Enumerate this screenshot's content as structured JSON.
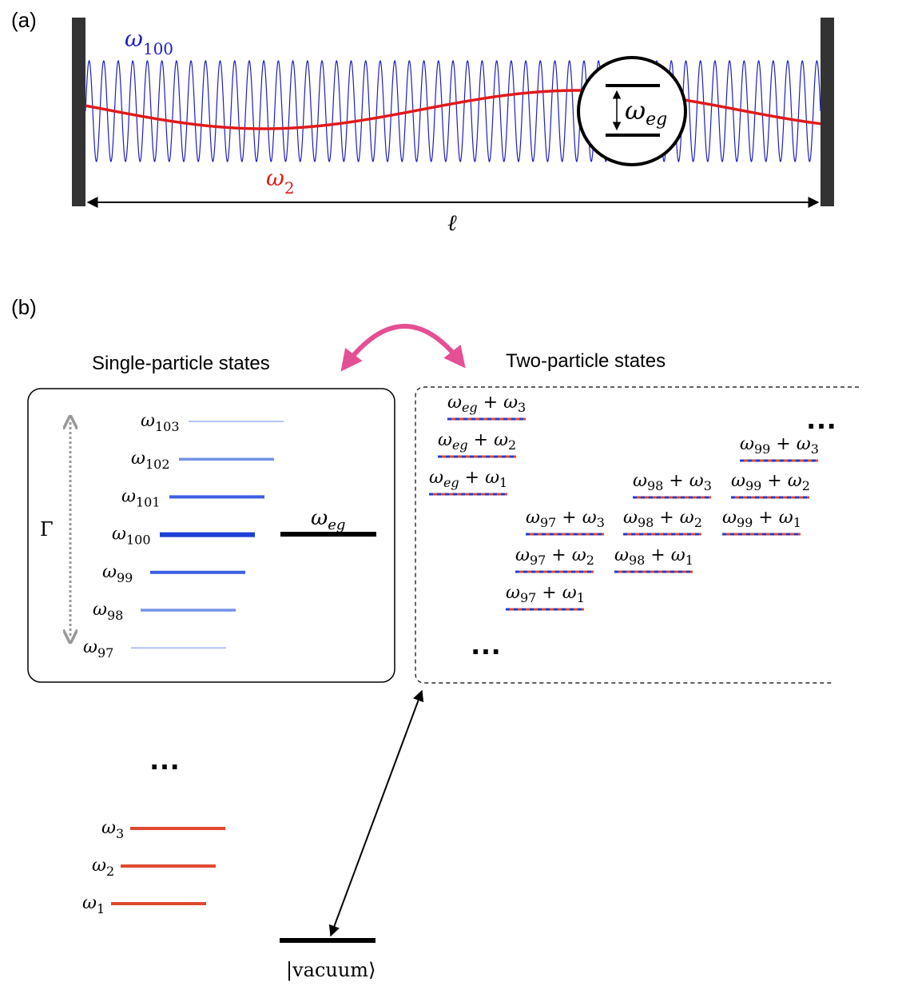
{
  "panel_a": {
    "label": "(a)",
    "high_mode": {
      "symbol": "ω",
      "subscript": "100",
      "color": "#1f1fbf"
    },
    "low_mode": {
      "symbol": "ω",
      "subscript": "2",
      "color": "#e01b1b"
    },
    "atom": {
      "symbol": "ω",
      "subscript": "eg"
    },
    "length_label": "ℓ",
    "wall_color": "#333333"
  },
  "panel_b": {
    "label": "(b)",
    "single_title": "Single-particle states",
    "two_title": "Two-particle states",
    "gamma_label": "Γ",
    "arrow_color": "#e54f94",
    "single_levels": [
      {
        "sub": "103",
        "color": "#b3c2f5"
      },
      {
        "sub": "102",
        "color": "#7393ea"
      },
      {
        "sub": "101",
        "color": "#3a5ee3"
      },
      {
        "sub": "100",
        "color": "#1c3fd6"
      },
      {
        "sub": "99",
        "color": "#3a5ee3"
      },
      {
        "sub": "98",
        "color": "#7393ea"
      },
      {
        "sub": "97",
        "color": "#b3c2f5"
      }
    ],
    "atom_level": {
      "symbol": "ω",
      "subscript": "eg"
    },
    "low_levels": [
      {
        "sub": "3"
      },
      {
        "sub": "2"
      },
      {
        "sub": "1"
      }
    ],
    "low_level_color": "#e0492f",
    "two_particle_states": [
      {
        "a": "eg",
        "b": "3"
      },
      {
        "a": "eg",
        "b": "2"
      },
      {
        "a": "eg",
        "b": "1"
      },
      {
        "a": "99",
        "b": "3"
      },
      {
        "a": "98",
        "b": "3"
      },
      {
        "a": "99",
        "b": "2"
      },
      {
        "a": "97",
        "b": "3"
      },
      {
        "a": "98",
        "b": "2"
      },
      {
        "a": "99",
        "b": "1"
      },
      {
        "a": "97",
        "b": "2"
      },
      {
        "a": "98",
        "b": "1"
      },
      {
        "a": "97",
        "b": "1"
      }
    ],
    "ellipsis": "…",
    "vacuum_label": "|vacuum⟩"
  }
}
